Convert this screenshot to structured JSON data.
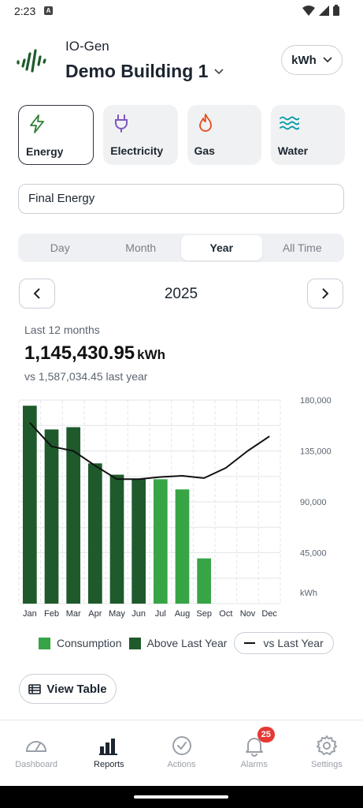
{
  "status_bar": {
    "time": "2:23",
    "notif_icon": "A"
  },
  "header": {
    "org": "IO-Gen",
    "building": "Demo Building 1",
    "unit": "kWh"
  },
  "categories": [
    {
      "label": "Energy",
      "icon": "bolt-icon",
      "color": "#2e7d32",
      "active": true
    },
    {
      "label": "Electricity",
      "icon": "plug-icon",
      "color": "#7e57c2",
      "active": false
    },
    {
      "label": "Gas",
      "icon": "flame-icon",
      "color": "#e64a19",
      "active": false
    },
    {
      "label": "Water",
      "icon": "waves-icon",
      "color": "#0097a7",
      "active": false
    }
  ],
  "energy_type": "Final Energy",
  "periods": [
    {
      "label": "Day",
      "active": false
    },
    {
      "label": "Month",
      "active": false
    },
    {
      "label": "Year",
      "active": true
    },
    {
      "label": "All Time",
      "active": false
    }
  ],
  "year": "2025",
  "summary": {
    "period_label": "Last 12 months",
    "total": "1,145,430.95",
    "unit": "kWh",
    "compare": "vs 1,587,034.45 last year"
  },
  "chart_data": {
    "type": "bar",
    "categories": [
      "Jan",
      "Feb",
      "Mar",
      "Apr",
      "May",
      "Jun",
      "Jul",
      "Aug",
      "Sep",
      "Oct",
      "Nov",
      "Dec"
    ],
    "series": [
      {
        "name": "Consumption",
        "values": [
          175000,
          154000,
          156000,
          124000,
          114000,
          110000,
          110000,
          101000,
          40000,
          null,
          null,
          null
        ],
        "above_last_year": [
          true,
          true,
          true,
          true,
          true,
          true,
          false,
          false,
          false,
          false,
          false,
          false
        ]
      },
      {
        "name": "vs Last Year",
        "type": "line",
        "values": [
          160000,
          139000,
          135000,
          122000,
          110000,
          110000,
          112000,
          113000,
          111000,
          120000,
          135000,
          148000
        ]
      }
    ],
    "ylim": [
      0,
      180000
    ],
    "yticks": [
      "180,000",
      "135,000",
      "90,000",
      "45,000"
    ],
    "yunit": "kWh",
    "colors": {
      "consumption": "#37a446",
      "above": "#1f5a2c",
      "line": "#111111"
    },
    "grid": true
  },
  "legend": [
    {
      "label": "Consumption",
      "color": "#37a446"
    },
    {
      "label": "Above Last Year",
      "color": "#1f5a2c"
    },
    {
      "label": "vs Last Year",
      "color": "#111111"
    }
  ],
  "view_table_label": "View Table",
  "bottom_nav": [
    {
      "label": "Dashboard",
      "icon": "gauge-icon",
      "active": false
    },
    {
      "label": "Reports",
      "icon": "bar-chart-icon",
      "active": true
    },
    {
      "label": "Actions",
      "icon": "check-circle-icon",
      "active": false
    },
    {
      "label": "Alarms",
      "icon": "bell-icon",
      "active": false,
      "badge": "25"
    },
    {
      "label": "Settings",
      "icon": "gear-icon",
      "active": false
    }
  ]
}
